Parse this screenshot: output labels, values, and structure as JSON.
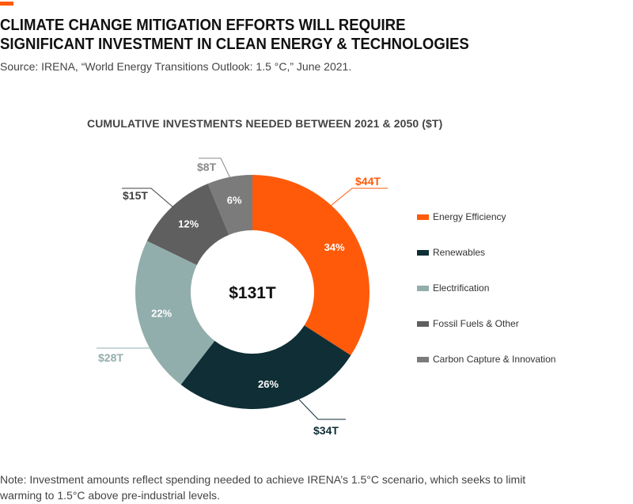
{
  "header": {
    "title_line1": "CLIMATE CHANGE MITIGATION EFFORTS WILL REQUIRE",
    "title_line2": "SIGNIFICANT INVESTMENT IN CLEAN ENERGY & TECHNOLOGIES",
    "source": "Source: IRENA, “World Energy Transitions Outlook: 1.5 °C,” June 2021.",
    "accent_color": "#ff5a0a"
  },
  "chart_data": {
    "type": "pie",
    "style": "donut",
    "title": "CUMULATIVE INVESTMENTS NEEDED BETWEEN 2021 & 2050 ($T)",
    "center_label": "$131T",
    "total": 131,
    "legend_position": "right",
    "slices": [
      {
        "name": "Energy Efficiency",
        "value": 44,
        "value_label": "$44T",
        "percent_label": "34%",
        "color": "#ff5a0a",
        "outer_label_color": "#ff5a0a"
      },
      {
        "name": "Renewables",
        "value": 34,
        "value_label": "$34T",
        "percent_label": "26%",
        "color": "#0f2e36",
        "outer_label_color": "#0f2e36"
      },
      {
        "name": "Electrification",
        "value": 28,
        "value_label": "$28T",
        "percent_label": "22%",
        "color": "#92aeac",
        "outer_label_color": "#92aeac"
      },
      {
        "name": "Fossil Fuels & Other",
        "value": 15,
        "value_label": "$15T",
        "percent_label": "12%",
        "color": "#5f5f5f",
        "outer_label_color": "#404040"
      },
      {
        "name": "Carbon Capture & Innovation",
        "value": 8,
        "value_label": "$8T",
        "percent_label": "6%",
        "color": "#7b7b7b",
        "outer_label_color": "#8a8a8a"
      }
    ]
  },
  "note": "Note: Investment amounts reflect spending needed to achieve IRENA’s 1.5°C scenario, which seeks to limit warming to 1.5°C above pre-industrial levels."
}
